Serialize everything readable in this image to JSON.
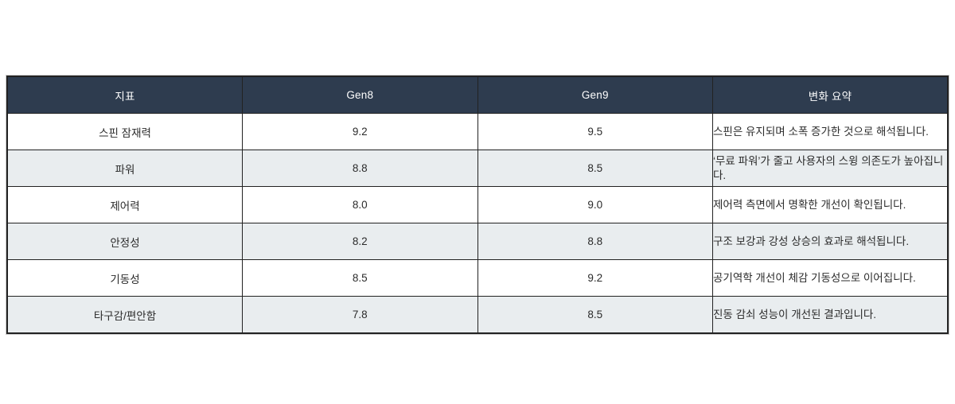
{
  "table": {
    "columns": {
      "metric": "지표",
      "gen8": "Gen8",
      "gen9": "Gen9",
      "summary": "변화 요약"
    },
    "rows": [
      {
        "metric": "스핀 잠재력",
        "gen8": "9.2",
        "gen9": "9.5",
        "summary": "스핀은 유지되며 소폭 증가한 것으로 해석됩니다."
      },
      {
        "metric": "파워",
        "gen8": "8.8",
        "gen9": "8.5",
        "summary": "‘무료 파워’가 줄고 사용자의 스윙 의존도가 높아집니다."
      },
      {
        "metric": "제어력",
        "gen8": "8.0",
        "gen9": "9.0",
        "summary": "제어력 측면에서 명확한 개선이 확인됩니다."
      },
      {
        "metric": "안정성",
        "gen8": "8.2",
        "gen9": "8.8",
        "summary": "구조 보강과 강성 상승의 효과로 해석됩니다."
      },
      {
        "metric": "기동성",
        "gen8": "8.5",
        "gen9": "9.2",
        "summary": "공기역학 개선이 체감 기동성으로 이어집니다."
      },
      {
        "metric": "타구감/편안함",
        "gen8": "7.8",
        "gen9": "8.5",
        "summary": "진동 감쇠 성능이 개선된 결과입니다."
      }
    ]
  },
  "colors": {
    "header_bg": "#2e3c4f",
    "header_text": "#ffffff",
    "alt_row_bg": "#e9edef",
    "border": "#222222",
    "body_text": "#333333"
  }
}
